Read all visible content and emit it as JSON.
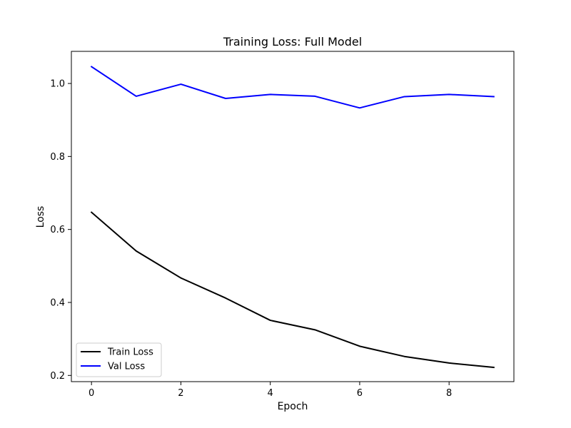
{
  "chart_data": {
    "type": "line",
    "title": "Training Loss: Full Model",
    "xlabel": "Epoch",
    "ylabel": "Loss",
    "x": [
      0,
      1,
      2,
      3,
      4,
      5,
      6,
      7,
      8,
      9
    ],
    "xlim": [
      -0.45,
      9.45
    ],
    "ylim": [
      0.183,
      1.088
    ],
    "xticks": [
      0,
      2,
      4,
      6,
      8
    ],
    "xtick_labels": [
      "0",
      "2",
      "4",
      "6",
      "8"
    ],
    "yticks": [
      0.2,
      0.4,
      0.6,
      0.8,
      1.0
    ],
    "ytick_labels": [
      "0.2",
      "0.4",
      "0.6",
      "0.8",
      "1.0"
    ],
    "grid": false,
    "legend_position": "lower-left",
    "series": [
      {
        "name": "Train Loss",
        "color": "#000000",
        "values": [
          0.647,
          0.541,
          0.467,
          0.412,
          0.351,
          0.325,
          0.28,
          0.252,
          0.234,
          0.222
        ]
      },
      {
        "name": "Val Loss",
        "color": "#0000ff",
        "values": [
          1.046,
          0.965,
          0.998,
          0.959,
          0.97,
          0.965,
          0.933,
          0.964,
          0.97,
          0.964
        ]
      }
    ]
  }
}
